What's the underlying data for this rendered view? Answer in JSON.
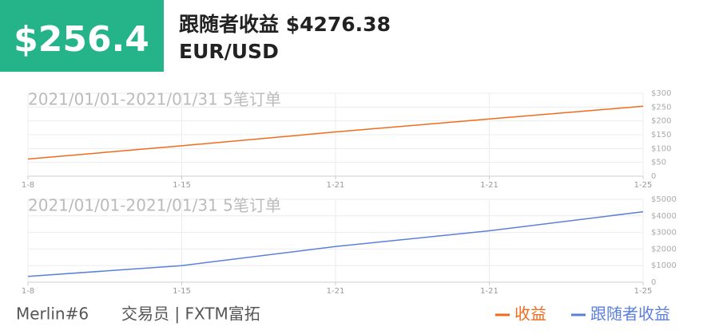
{
  "header": {
    "amount": "$256.4",
    "title": "跟随者收益 $4276.38",
    "symbol": "EUR/USD"
  },
  "footer": {
    "trader": "Merlin#6",
    "role": "交易员 | FXTM富拓"
  },
  "chart_data": [
    {
      "type": "line",
      "subtitle": "2021/01/01-2021/01/31 5笔订单",
      "categories": [
        "1-8",
        "1-15",
        "1-21",
        "1-21",
        "1-25"
      ],
      "series": [
        {
          "name": "收益",
          "color": "#f26b1d",
          "values": [
            62,
            110,
            160,
            207,
            253
          ]
        }
      ],
      "ylim": [
        0,
        300
      ],
      "yticks": [
        {
          "value": 0,
          "label": "0"
        },
        {
          "value": 50,
          "label": "$50"
        },
        {
          "value": 100,
          "label": "$100"
        },
        {
          "value": 150,
          "label": "$150"
        },
        {
          "value": 200,
          "label": "$200"
        },
        {
          "value": 250,
          "label": "$250"
        },
        {
          "value": 300,
          "label": "$300"
        }
      ],
      "grid": true
    },
    {
      "type": "line",
      "subtitle": "2021/01/01-2021/01/31 5笔订单",
      "categories": [
        "1-8",
        "1-15",
        "1-21",
        "1-21",
        "1-25"
      ],
      "series": [
        {
          "name": "跟随者收益",
          "color": "#5b7fdc",
          "values": [
            350,
            1000,
            2150,
            3100,
            4250
          ]
        }
      ],
      "ylim": [
        0,
        5000
      ],
      "yticks": [
        {
          "value": 0,
          "label": "0"
        },
        {
          "value": 1000,
          "label": "$1000"
        },
        {
          "value": 2000,
          "label": "$2000"
        },
        {
          "value": 3000,
          "label": "$3000"
        },
        {
          "value": 4000,
          "label": "$4000"
        },
        {
          "value": 5000,
          "label": "$5000"
        }
      ],
      "grid": true
    }
  ]
}
